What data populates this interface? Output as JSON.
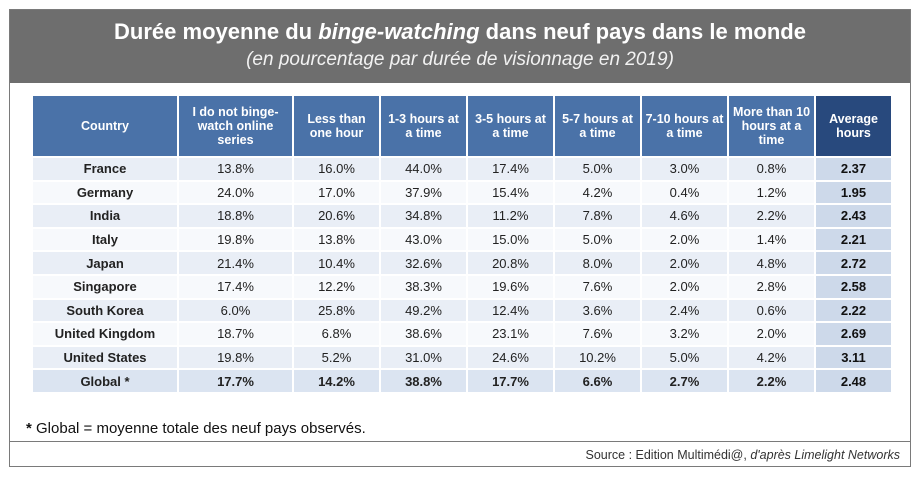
{
  "header": {
    "title_pre": "Durée moyenne du ",
    "title_em": "binge-watching",
    "title_post": " dans neuf pays dans le monde",
    "subtitle": "(en pourcentage par durée de visionnage en 2019)"
  },
  "colors": {
    "header_bg": "#6e6e6e",
    "column_header": "#4a72a8",
    "average_header": "#28497d",
    "row_light": "#e9eef6"
  },
  "chart_data": {
    "type": "table",
    "columns": [
      "Country",
      "I do not binge-watch online series",
      "Less than one hour",
      "1-3 hours at a time",
      "3-5 hours at a time",
      "5-7 hours at a time",
      "7-10 hours at a time",
      "More than 10 hours at a time",
      "Average hours"
    ],
    "rows": [
      [
        "France",
        "13.8%",
        "16.0%",
        "44.0%",
        "17.4%",
        "5.0%",
        "3.0%",
        "0.8%",
        "2.37"
      ],
      [
        "Germany",
        "24.0%",
        "17.0%",
        "37.9%",
        "15.4%",
        "4.2%",
        "0.4%",
        "1.2%",
        "1.95"
      ],
      [
        "India",
        "18.8%",
        "20.6%",
        "34.8%",
        "11.2%",
        "7.8%",
        "4.6%",
        "2.2%",
        "2.43"
      ],
      [
        "Italy",
        "19.8%",
        "13.8%",
        "43.0%",
        "15.0%",
        "5.0%",
        "2.0%",
        "1.4%",
        "2.21"
      ],
      [
        "Japan",
        "21.4%",
        "10.4%",
        "32.6%",
        "20.8%",
        "8.0%",
        "2.0%",
        "4.8%",
        "2.72"
      ],
      [
        "Singapore",
        "17.4%",
        "12.2%",
        "38.3%",
        "19.6%",
        "7.6%",
        "2.0%",
        "2.8%",
        "2.58"
      ],
      [
        "South Korea",
        "6.0%",
        "25.8%",
        "49.2%",
        "12.4%",
        "3.6%",
        "2.4%",
        "0.6%",
        "2.22"
      ],
      [
        "United Kingdom",
        "18.7%",
        "6.8%",
        "38.6%",
        "23.1%",
        "7.6%",
        "3.2%",
        "2.0%",
        "2.69"
      ],
      [
        "United States",
        "19.8%",
        "5.2%",
        "31.0%",
        "24.6%",
        "10.2%",
        "5.0%",
        "4.2%",
        "3.11"
      ],
      [
        "Global *",
        "17.7%",
        "14.2%",
        "38.8%",
        "17.7%",
        "6.6%",
        "2.7%",
        "2.2%",
        "2.48"
      ]
    ]
  },
  "footnote": {
    "star": "*",
    "text": " Global = moyenne totale des neuf pays observés."
  },
  "source": {
    "prefix": "Source : Edition Multimédi@, ",
    "italic": "d'après Limelight Networks"
  }
}
